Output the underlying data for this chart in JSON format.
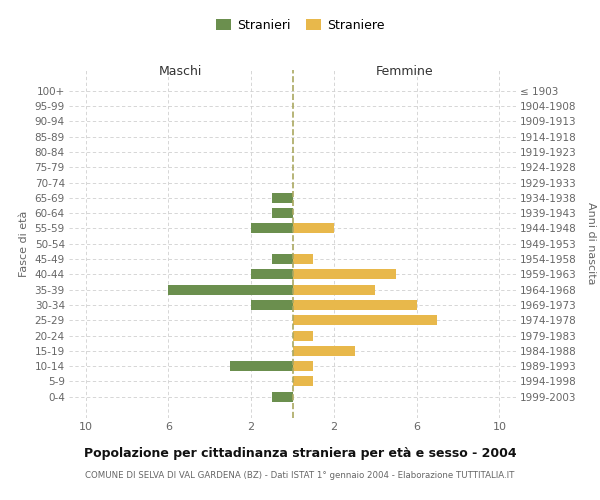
{
  "age_groups": [
    "100+",
    "95-99",
    "90-94",
    "85-89",
    "80-84",
    "75-79",
    "70-74",
    "65-69",
    "60-64",
    "55-59",
    "50-54",
    "45-49",
    "40-44",
    "35-39",
    "30-34",
    "25-29",
    "20-24",
    "15-19",
    "10-14",
    "5-9",
    "0-4"
  ],
  "birth_years": [
    "≤ 1903",
    "1904-1908",
    "1909-1913",
    "1914-1918",
    "1919-1923",
    "1924-1928",
    "1929-1933",
    "1934-1938",
    "1939-1943",
    "1944-1948",
    "1949-1953",
    "1954-1958",
    "1959-1963",
    "1964-1968",
    "1969-1973",
    "1974-1978",
    "1979-1983",
    "1984-1988",
    "1989-1993",
    "1994-1998",
    "1999-2003"
  ],
  "maschi": [
    0,
    0,
    0,
    0,
    0,
    0,
    0,
    1,
    1,
    2,
    0,
    1,
    2,
    6,
    2,
    0,
    0,
    0,
    3,
    0,
    1
  ],
  "femmine": [
    0,
    0,
    0,
    0,
    0,
    0,
    0,
    0,
    0,
    2,
    0,
    1,
    5,
    4,
    6,
    7,
    1,
    3,
    1,
    1,
    0
  ],
  "color_maschi": "#6b8f4e",
  "color_femmine": "#e8b84b",
  "title": "Popolazione per cittadinanza straniera per età e sesso - 2004",
  "subtitle": "COMUNE DI SELVA DI VAL GARDENA (BZ) - Dati ISTAT 1° gennaio 2004 - Elaborazione TUTTITALIA.IT",
  "xlabel_left": "Maschi",
  "xlabel_right": "Femmine",
  "ylabel_left": "Fasce di età",
  "ylabel_right": "Anni di nascita",
  "legend_maschi": "Stranieri",
  "legend_femmine": "Straniere",
  "background_color": "#ffffff",
  "grid_color": "#d0d0d0",
  "dashed_line_color": "#aaa860"
}
